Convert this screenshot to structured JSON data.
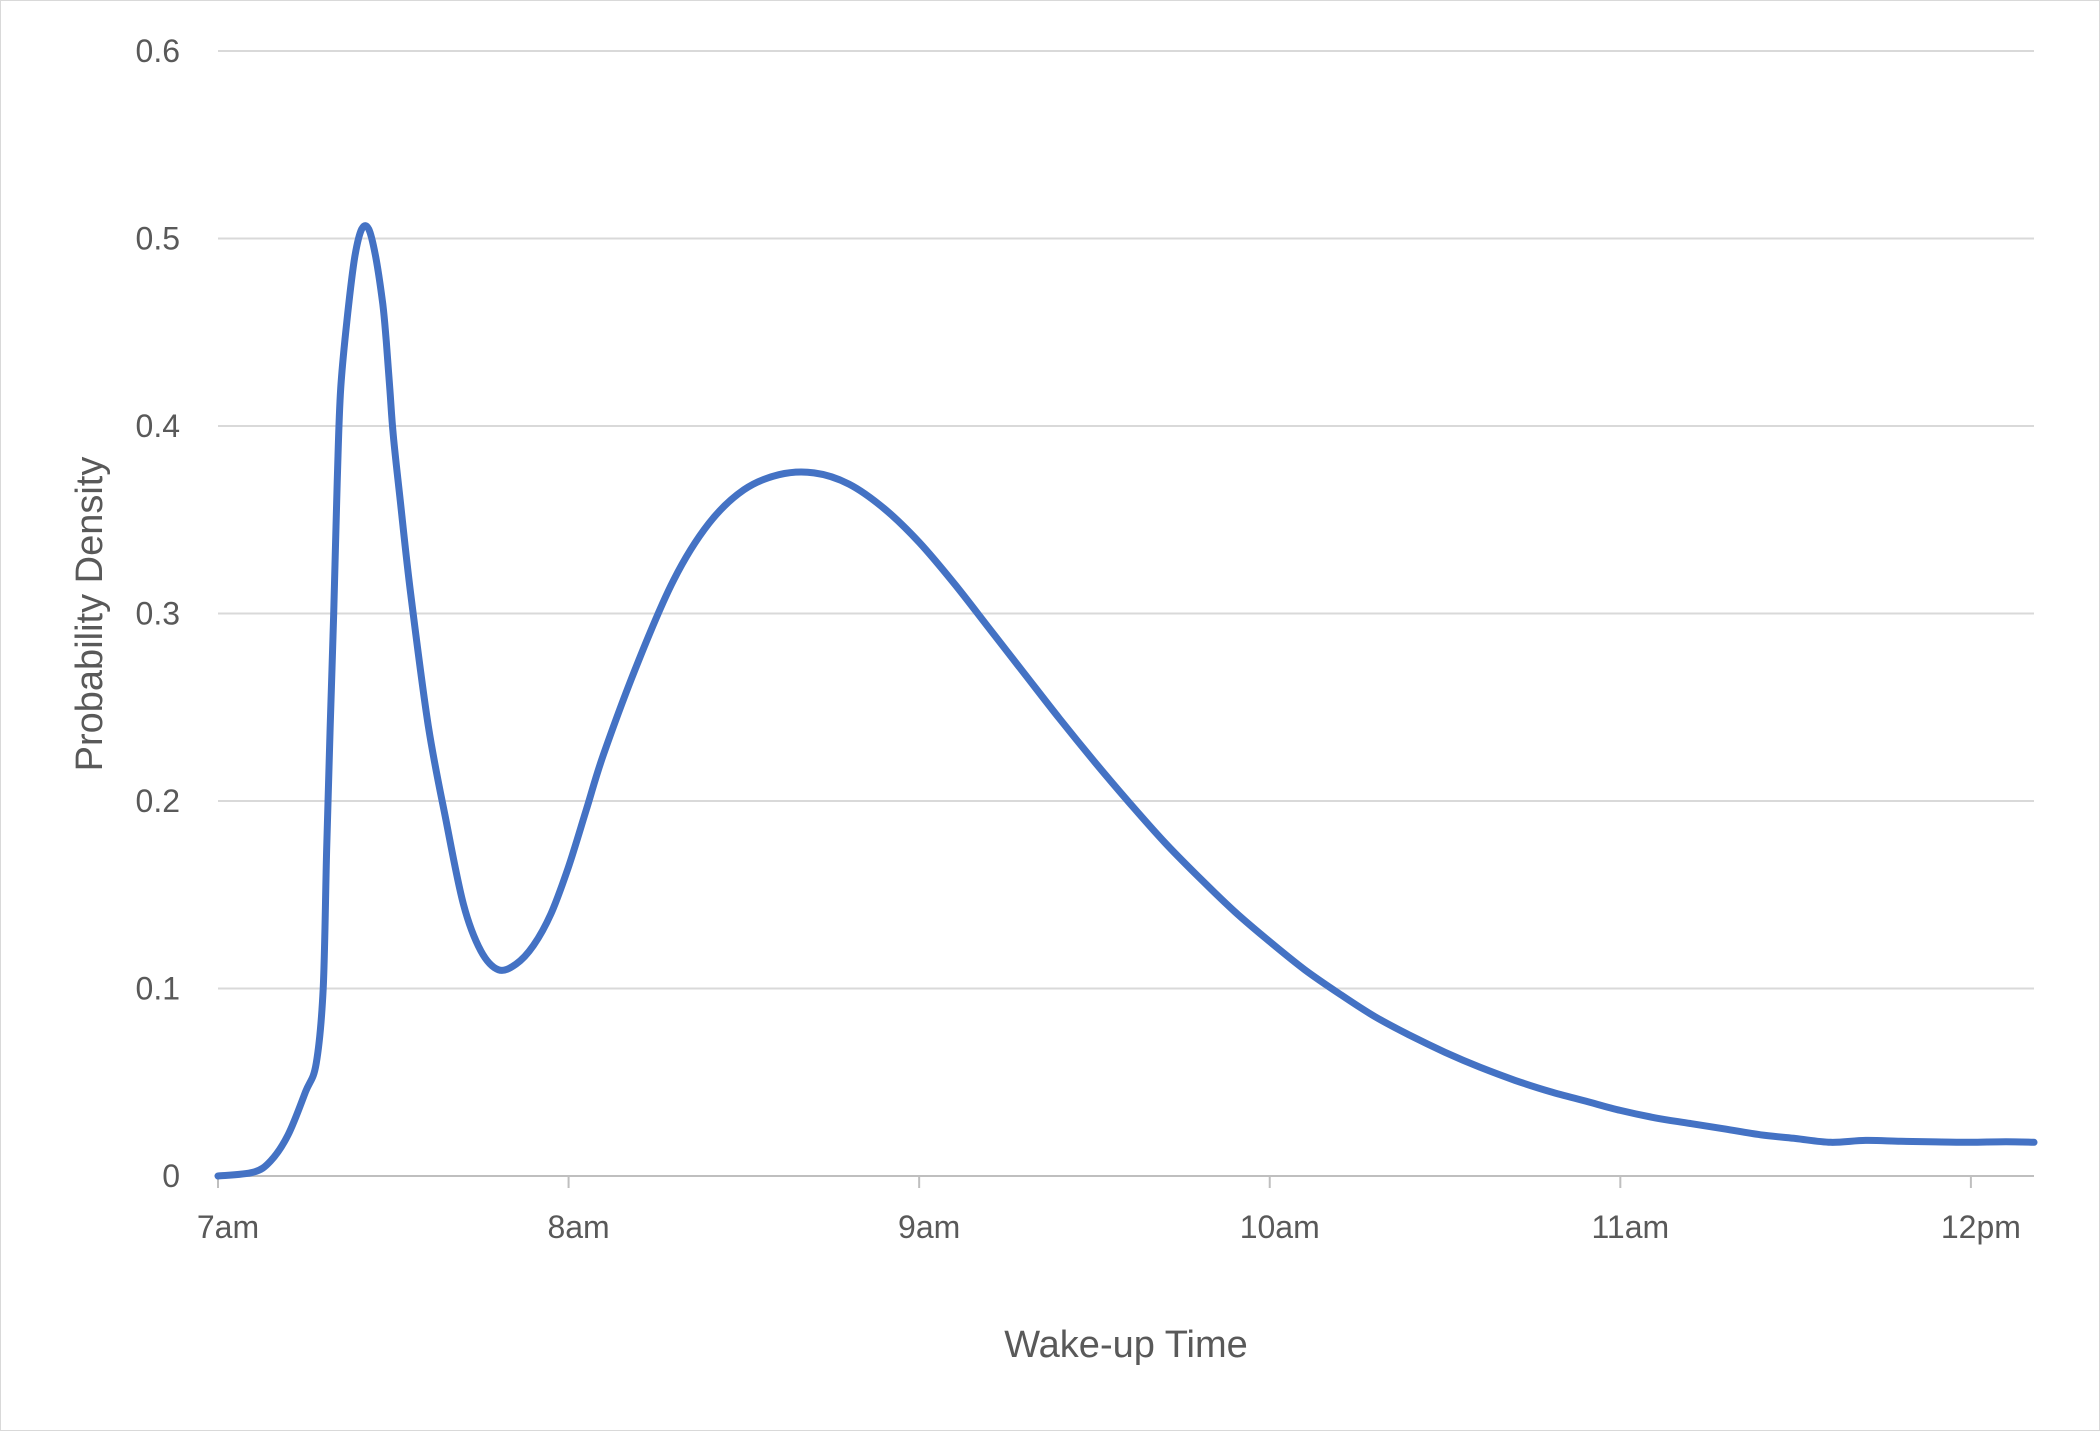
{
  "chart_data": {
    "type": "line",
    "title": "",
    "xlabel": "Wake-up Time",
    "ylabel": "Probability Density",
    "grid": true,
    "legend": "none",
    "line_color": "#4472C4",
    "x_unit": "hours after 7am",
    "xlim": [
      0,
      5.18
    ],
    "ylim": [
      0,
      0.6
    ],
    "x_ticks": [
      {
        "value": 0,
        "label": "7am"
      },
      {
        "value": 1,
        "label": "8am"
      },
      {
        "value": 2,
        "label": "9am"
      },
      {
        "value": 3,
        "label": "10am"
      },
      {
        "value": 4,
        "label": "11am"
      },
      {
        "value": 5,
        "label": "12pm"
      }
    ],
    "y_ticks": [
      {
        "value": 0,
        "label": "0"
      },
      {
        "value": 0.1,
        "label": "0.1"
      },
      {
        "value": 0.2,
        "label": "0.2"
      },
      {
        "value": 0.3,
        "label": "0.3"
      },
      {
        "value": 0.4,
        "label": "0.4"
      },
      {
        "value": 0.5,
        "label": "0.5"
      },
      {
        "value": 0.6,
        "label": "0.6"
      }
    ],
    "series": [
      {
        "x": [
          0,
          0.1,
          0.15,
          0.2,
          0.25,
          0.28,
          0.3,
          0.31,
          0.32,
          0.33,
          0.34,
          0.35,
          0.37,
          0.39,
          0.41,
          0.43,
          0.45,
          0.47,
          0.48,
          0.49,
          0.5,
          0.52,
          0.55,
          0.6,
          0.65,
          0.7,
          0.75,
          0.8,
          0.85,
          0.9,
          0.95,
          1.0,
          1.05,
          1.1,
          1.2,
          1.3,
          1.4,
          1.5,
          1.6,
          1.7,
          1.8,
          1.9,
          2.0,
          2.1,
          2.2,
          2.3,
          2.4,
          2.5,
          2.6,
          2.7,
          2.8,
          2.9,
          3.0,
          3.1,
          3.2,
          3.3,
          3.4,
          3.5,
          3.6,
          3.7,
          3.8,
          3.9,
          4.0,
          4.1,
          4.2,
          4.3,
          4.4,
          4.5,
          4.6,
          4.7,
          4.8,
          4.9,
          5.0,
          5.1,
          5.18
        ],
        "y": [
          0.0,
          0.002,
          0.008,
          0.022,
          0.045,
          0.06,
          0.1,
          0.175,
          0.24,
          0.3,
          0.37,
          0.42,
          0.46,
          0.49,
          0.505,
          0.505,
          0.49,
          0.465,
          0.445,
          0.42,
          0.395,
          0.36,
          0.31,
          0.24,
          0.19,
          0.145,
          0.12,
          0.11,
          0.113,
          0.123,
          0.14,
          0.165,
          0.195,
          0.225,
          0.275,
          0.318,
          0.348,
          0.366,
          0.374,
          0.375,
          0.369,
          0.356,
          0.338,
          0.316,
          0.292,
          0.268,
          0.244,
          0.221,
          0.199,
          0.178,
          0.159,
          0.141,
          0.125,
          0.11,
          0.097,
          0.085,
          0.075,
          0.066,
          0.058,
          0.051,
          0.045,
          0.04,
          0.035,
          0.031,
          0.028,
          0.025,
          0.022,
          0.02,
          0.018,
          0.019,
          0.0185,
          0.0182,
          0.018,
          0.0183,
          0.018
        ]
      }
    ]
  }
}
